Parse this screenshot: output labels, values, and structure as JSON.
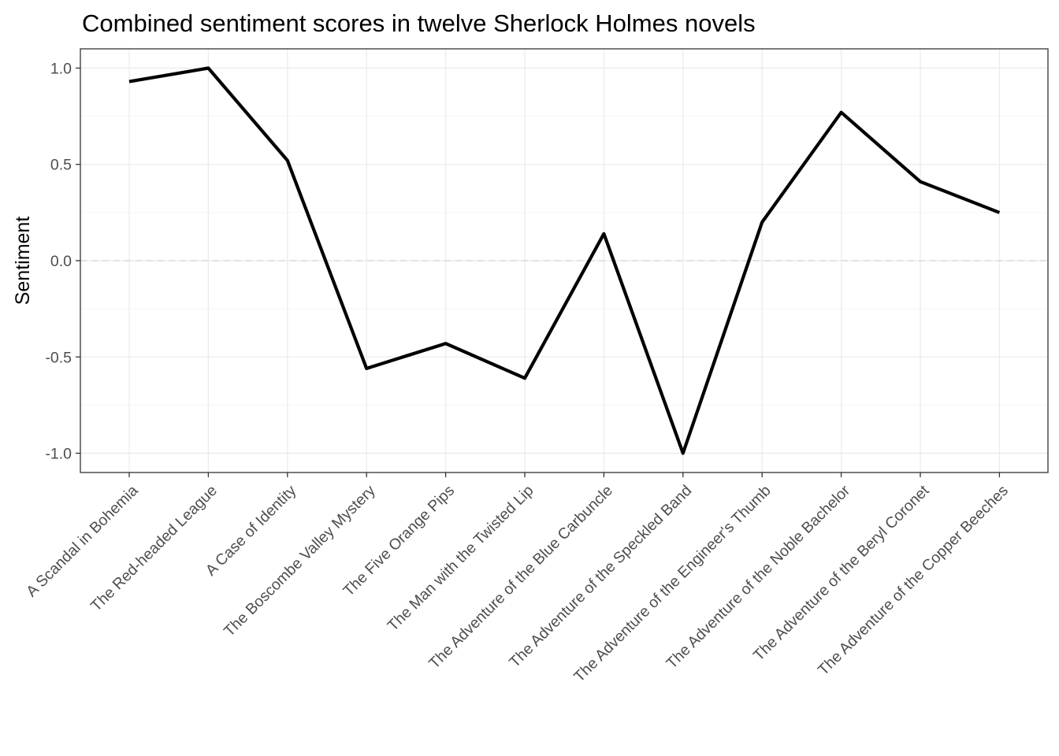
{
  "chart_data": {
    "type": "line",
    "title": "Combined sentiment scores in twelve Sherlock Holmes novels",
    "xlabel": "",
    "ylabel": "Sentiment",
    "categories": [
      "A Scandal in Bohemia",
      "The Red-headed League",
      "A Case of Identity",
      "The Boscombe Valley Mystery",
      "The Five Orange Pips",
      "The Man with the Twisted Lip",
      "The Adventure of the Blue Carbuncle",
      "The Adventure of the Speckled Band",
      "The Adventure of the Engineer's Thumb",
      "The Adventure of the Noble Bachelor",
      "The Adventure of the Beryl Coronet",
      "The Adventure of the Copper Beeches"
    ],
    "series": [
      {
        "values": [
          0.93,
          1.0,
          0.52,
          -0.56,
          -0.43,
          -0.61,
          0.14,
          -1.0,
          0.2,
          0.77,
          0.41,
          0.25
        ],
        "color": "#000000"
      }
    ],
    "ylim": [
      -1.1,
      1.1
    ],
    "yticks": [
      -1.0,
      -0.5,
      0.0,
      0.5,
      1.0
    ],
    "ytick_labels": [
      "-1.0",
      "-0.5",
      "0.0",
      "0.5",
      "1.0"
    ],
    "reference_line": {
      "y": 0,
      "style": "dashed",
      "color": "#d9d9d9"
    },
    "grid": true,
    "legend": "none",
    "colors": {
      "panel_border": "#333333",
      "grid_major": "#ebebeb",
      "grid_minor": "#f5f5f5",
      "tick_text": "#4d4d4d",
      "line": "#000000"
    }
  }
}
